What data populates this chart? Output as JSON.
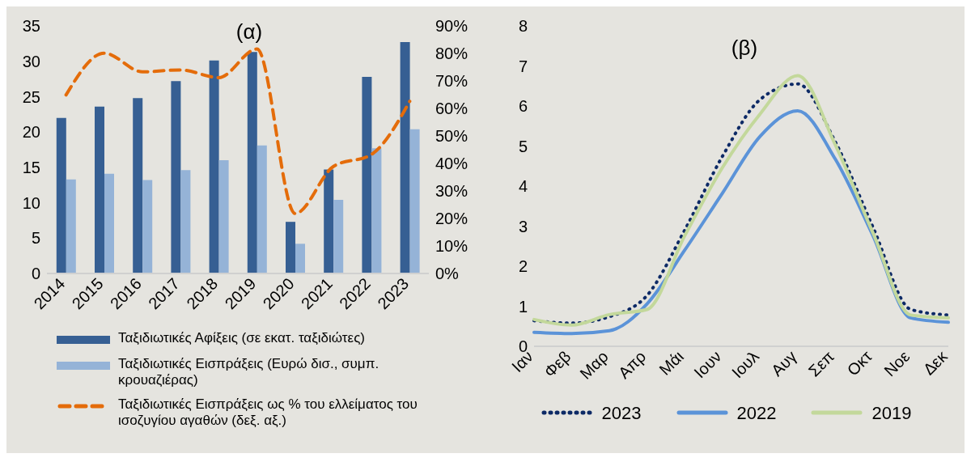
{
  "chart_data": [
    {
      "type": "bar",
      "title": "(α)",
      "categories": [
        "2014",
        "2015",
        "2016",
        "2017",
        "2018",
        "2019",
        "2020",
        "2021",
        "2022",
        "2023"
      ],
      "series": [
        {
          "name": "Ταξιδιωτικές Αφίξεις (σε εκατ. ταξιδιώτες)",
          "color": "#365f93",
          "values": [
            22.0,
            23.6,
            24.8,
            27.2,
            30.1,
            31.3,
            7.3,
            14.7,
            27.8,
            32.7
          ]
        },
        {
          "name": "Ταξιδιωτικές Εισπράξεις (Ευρώ δισ., συμπ. κρουαζιέρας)",
          "color": "#95b3d7",
          "values": [
            13.3,
            14.1,
            13.2,
            14.6,
            16.0,
            18.1,
            4.2,
            10.4,
            17.7,
            20.4
          ]
        },
        {
          "name": "Ταξιδιωτικές Εισπράξεις ως % του ελλείματος του ισοζυγίου αγαθών (δεξ. αξ.)",
          "type": "line",
          "axis": "y2",
          "line_style": "dashed",
          "color": "#e46c0a",
          "values": [
            64.9,
            80.1,
            73.3,
            74.0,
            71.2,
            81.6,
            21.8,
            38.9,
            43.3,
            62.6
          ]
        }
      ],
      "ylim": [
        0,
        35
      ],
      "yticks": [
        0,
        5,
        10,
        15,
        20,
        25,
        30,
        35
      ],
      "y2lim": [
        0,
        90
      ],
      "y2ticks": [
        {
          "value": 0,
          "label": "0%"
        },
        {
          "value": 10,
          "label": "10%"
        },
        {
          "value": 20,
          "label": "20%"
        },
        {
          "value": 30,
          "label": "30%"
        },
        {
          "value": 40,
          "label": "40%"
        },
        {
          "value": 50,
          "label": "50%"
        },
        {
          "value": 60,
          "label": "60%"
        },
        {
          "value": 70,
          "label": "70%"
        },
        {
          "value": 80,
          "label": "80%"
        },
        {
          "value": 90,
          "label": "90%"
        }
      ],
      "legend": "bottom",
      "grid": false
    },
    {
      "type": "line",
      "title": "(β)",
      "categories": [
        "Ιαν",
        "Φεβ",
        "Μαρ",
        "Απρ",
        "Μάι",
        "Ιουν",
        "Ιουλ",
        "Αυγ",
        "Σεπ",
        "Οκτ",
        "Νοε",
        "Δεκ"
      ],
      "series": [
        {
          "name": "2023",
          "color": "#0d2a66",
          "line_style": "dotted",
          "values": [
            0.64,
            0.58,
            0.74,
            1.27,
            2.9,
            4.74,
            6.16,
            6.55,
            5.1,
            2.97,
            0.92,
            0.78
          ]
        },
        {
          "name": "2022",
          "color": "#5b93d8",
          "line_style": "solid",
          "values": [
            0.35,
            0.32,
            0.39,
            1.06,
            2.4,
            3.82,
            5.24,
            5.88,
            4.67,
            2.76,
            0.71,
            0.6
          ]
        },
        {
          "name": "2019",
          "color": "#c3d89b",
          "line_style": "solid",
          "values": [
            0.67,
            0.53,
            0.79,
            0.92,
            2.76,
            4.46,
            5.8,
            6.76,
            5.03,
            2.83,
            0.78,
            0.71
          ]
        }
      ],
      "ylim": [
        0,
        8
      ],
      "yticks": [
        0,
        1,
        2,
        3,
        4,
        5,
        6,
        7,
        8
      ],
      "legend": "bottom",
      "grid": false
    }
  ]
}
